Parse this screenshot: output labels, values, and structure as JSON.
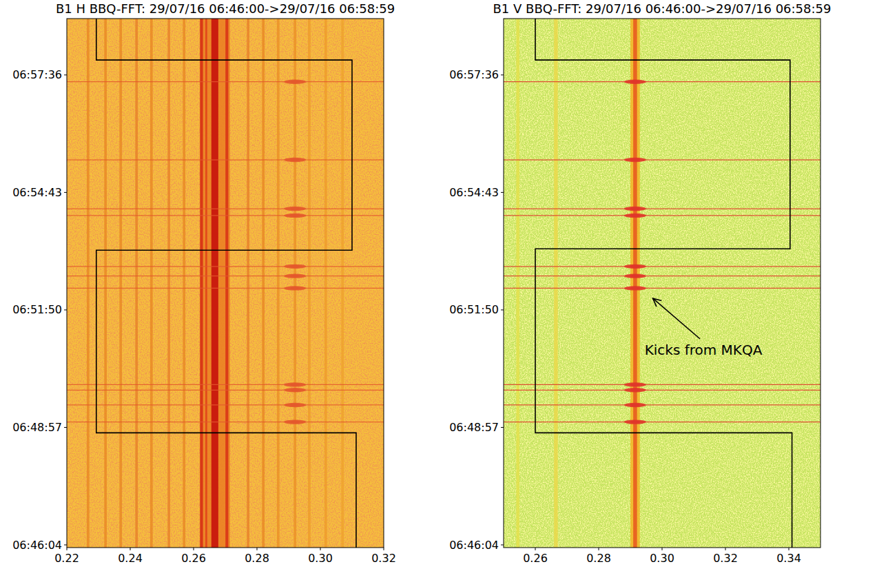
{
  "chart_data": [
    {
      "type": "spectrogram",
      "title": "B1 H BBQ-FFT: 29/07/16 06:46:00->29/07/16 06:58:59",
      "color": "#f5c03c",
      "xlim": [
        0.22,
        0.32
      ],
      "xticks": [
        0.22,
        0.24,
        0.26,
        0.28,
        {
          "value": 0.3,
          "label": "0.30"
        },
        0.32
      ],
      "ylim": [
        24360,
        25139
      ],
      "yticks": [
        {
          "value": 24364,
          "label": "06:46:04"
        },
        {
          "value": 24537,
          "label": "06:48:57"
        },
        {
          "value": 24710,
          "label": "06:51:50"
        },
        {
          "value": 24883,
          "label": "06:54:43"
        },
        {
          "value": 25056,
          "label": "06:57:36"
        }
      ],
      "spectral_lines": {
        "x": [
          0.2667,
          0.2267,
          0.2322,
          0.237,
          0.242,
          0.2467,
          0.2522,
          0.257,
          0.2625,
          0.264,
          0.2667,
          0.2705,
          0.2772,
          0.282,
          0.2867,
          0.292,
          0.2965,
          0.3017,
          0.307
        ],
        "spread": [
          0.0095,
          0.0008,
          0.0008,
          0.0008,
          0.0008,
          0.0008,
          0.0008,
          0.0008,
          0.0009,
          0.0006,
          0.0022,
          0.0009,
          0.0008,
          0.0008,
          0.0008,
          0.0008,
          0.0008,
          0.0008,
          0.0008
        ],
        "colors": [
          "#ea7e22",
          "#e98a26",
          "#e98a26",
          "#e98a26",
          "#e8832a",
          "#e98a26",
          "#e8832a",
          "#e98a26",
          "#d62a14",
          "#e0401a",
          "#c40a0a",
          "#d83016",
          "#e8832a",
          "#e98a26",
          "#eb9228",
          "#eb9228",
          "#ee9c2c",
          "#ee9c2c",
          "#efa22e"
        ]
      },
      "kicks": {
        "y": [
          25046,
          24931,
          24859,
          24849,
          24774,
          24760,
          24742,
          24600,
          24592,
          24570,
          24545
        ],
        "x": 0.292,
        "color": "#e4582c"
      },
      "series": [
        {
          "type": "line",
          "color": "#000000",
          "x": [
            0.2293,
            0.2293,
            0.31,
            0.31,
            0.2293,
            0.2293,
            0.3113,
            0.3113
          ],
          "y": [
            25139,
            25078,
            25078,
            24798,
            24798,
            24529,
            24529,
            24360
          ]
        }
      ]
    },
    {
      "type": "spectrogram",
      "title": "B1 V BBQ-FFT: 29/07/16 06:46:00->29/07/16 06:58:59",
      "color": "#c4e35e",
      "xlim": [
        0.25,
        0.35
      ],
      "xticks": [
        0.26,
        0.28,
        {
          "value": 0.3,
          "label": "0.30"
        },
        0.32,
        0.34
      ],
      "ylim": [
        24360,
        25139
      ],
      "yticks": [
        {
          "value": 24364,
          "label": "06:46:04"
        },
        {
          "value": 24537,
          "label": "06:48:57"
        },
        {
          "value": 24710,
          "label": "06:51:50"
        },
        {
          "value": 24883,
          "label": "06:54:43"
        },
        {
          "value": 25056,
          "label": "06:57:36"
        }
      ],
      "spectral_lines": {
        "x": [
          0.2545,
          0.2665,
          0.2915,
          0.2915
        ],
        "spread": [
          0.001,
          0.0012,
          0.003,
          0.0012
        ],
        "colors": [
          "#e3e04c",
          "#ead84a",
          "#f2b526",
          "#e8561e"
        ]
      },
      "kicks": {
        "y": [
          25046,
          24931,
          24859,
          24849,
          24774,
          24760,
          24742,
          24600,
          24592,
          24570,
          24545
        ],
        "x": 0.2915,
        "color": "#e0362a"
      },
      "series": [
        {
          "type": "line",
          "color": "#000000",
          "x": [
            0.26,
            0.26,
            0.3404,
            0.3404,
            0.26,
            0.26,
            0.341,
            0.341
          ],
          "y": [
            25139,
            25078,
            25078,
            24800,
            24800,
            24529,
            24529,
            24360
          ]
        }
      ],
      "annotations": [
        {
          "text": "Kicks from MKQA",
          "x": 0.2945,
          "y": 24644,
          "arrow_x": 0.2971,
          "arrow_y": 24727
        }
      ]
    }
  ]
}
